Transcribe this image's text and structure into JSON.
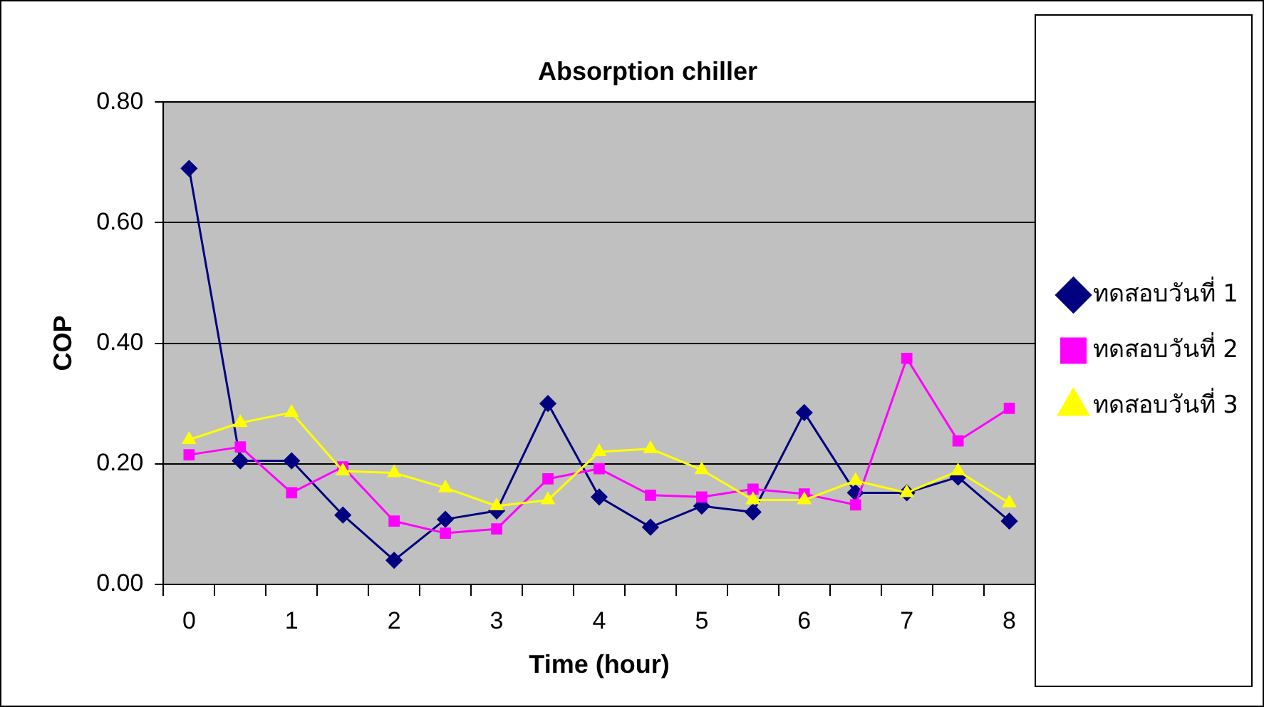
{
  "chart_data": {
    "type": "line",
    "title": "Absorption chiller",
    "xlabel": "Time (hour)",
    "ylabel": "COP",
    "categories": [
      "0",
      null,
      "1",
      null,
      "2",
      null,
      "3",
      null,
      "4",
      null,
      "5",
      null,
      "6",
      null,
      "7",
      null,
      "8"
    ],
    "ylim": [
      0,
      0.8
    ],
    "yticks": [
      {
        "value": 0,
        "label": "0.00"
      },
      {
        "value": 0.2,
        "label": "0.20"
      },
      {
        "value": 0.4,
        "label": "0.40"
      },
      {
        "value": 0.6,
        "label": "0.60"
      },
      {
        "value": 0.8,
        "label": "0.80"
      }
    ],
    "grid": "y",
    "legend": "right",
    "series": [
      {
        "name": "ทดสอบวันที่ 1",
        "color": "#000080",
        "marker": "diamond",
        "values": [
          0.69,
          0.205,
          0.205,
          0.115,
          0.04,
          0.108,
          0.122,
          0.3,
          0.145,
          0.095,
          0.13,
          0.12,
          0.285,
          0.152,
          0.152,
          0.178,
          0.105
        ]
      },
      {
        "name": "ทดสอบวันที่ 2",
        "color": "#ff00ff",
        "marker": "square",
        "values": [
          0.215,
          0.228,
          0.152,
          0.195,
          0.105,
          0.085,
          0.092,
          0.175,
          0.192,
          0.148,
          0.145,
          0.158,
          0.15,
          0.132,
          0.375,
          0.238,
          0.292
        ]
      },
      {
        "name": "ทดสอบวันที่ 3",
        "color": "#ffff00",
        "marker": "triangle",
        "values": [
          0.24,
          0.268,
          0.285,
          0.188,
          0.185,
          0.16,
          0.13,
          0.14,
          0.22,
          0.225,
          0.19,
          0.14,
          0.14,
          0.172,
          0.152,
          0.188,
          0.135
        ]
      }
    ]
  }
}
